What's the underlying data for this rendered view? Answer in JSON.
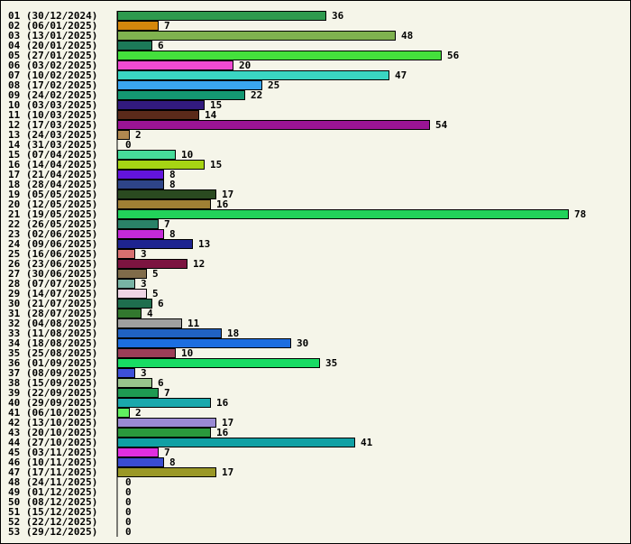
{
  "chart_data": {
    "type": "bar",
    "orientation": "horizontal",
    "title": "",
    "xlabel": "",
    "ylabel": "",
    "xlim": [
      0,
      78
    ],
    "grid": false,
    "categories": [
      "01 (30/12/2024)",
      "02 (06/01/2025)",
      "03 (13/01/2025)",
      "04 (20/01/2025)",
      "05 (27/01/2025)",
      "06 (03/02/2025)",
      "07 (10/02/2025)",
      "08 (17/02/2025)",
      "09 (24/02/2025)",
      "10 (03/03/2025)",
      "11 (10/03/2025)",
      "12 (17/03/2025)",
      "13 (24/03/2025)",
      "14 (31/03/2025)",
      "15 (07/04/2025)",
      "16 (14/04/2025)",
      "17 (21/04/2025)",
      "18 (28/04/2025)",
      "19 (05/05/2025)",
      "20 (12/05/2025)",
      "21 (19/05/2025)",
      "22 (26/05/2025)",
      "23 (02/06/2025)",
      "24 (09/06/2025)",
      "25 (16/06/2025)",
      "26 (23/06/2025)",
      "27 (30/06/2025)",
      "28 (07/07/2025)",
      "29 (14/07/2025)",
      "30 (21/07/2025)",
      "31 (28/07/2025)",
      "32 (04/08/2025)",
      "33 (11/08/2025)",
      "34 (18/08/2025)",
      "35 (25/08/2025)",
      "36 (01/09/2025)",
      "37 (08/09/2025)",
      "38 (15/09/2025)",
      "39 (22/09/2025)",
      "40 (29/09/2025)",
      "41 (06/10/2025)",
      "42 (13/10/2025)",
      "43 (20/10/2025)",
      "44 (27/10/2025)",
      "45 (03/11/2025)",
      "46 (10/11/2025)",
      "47 (17/11/2025)",
      "48 (24/11/2025)",
      "49 (01/12/2025)",
      "50 (08/12/2025)",
      "51 (15/12/2025)",
      "52 (22/12/2025)",
      "53 (29/12/2025)"
    ],
    "values": [
      36,
      7,
      48,
      6,
      56,
      20,
      47,
      25,
      22,
      15,
      14,
      54,
      2,
      0,
      10,
      15,
      8,
      8,
      17,
      16,
      78,
      7,
      8,
      13,
      3,
      12,
      5,
      3,
      5,
      6,
      4,
      11,
      18,
      30,
      10,
      35,
      3,
      6,
      7,
      16,
      2,
      17,
      16,
      41,
      7,
      8,
      17,
      0,
      0,
      0,
      0,
      0,
      0
    ],
    "colors": [
      "#2e9a4e",
      "#d4870c",
      "#7fb24f",
      "#1c7a58",
      "#44e03c",
      "#f04ad2",
      "#3ad6c2",
      "#3aa6f0",
      "#149872",
      "#321a7e",
      "#5a2a1a",
      "#9a1494",
      "#b08850",
      "#ffffff",
      "#46dc9a",
      "#a6d414",
      "#6214dc",
      "#2e4488",
      "#2a4a20",
      "#a08034",
      "#22d25a",
      "#2a8268",
      "#c42ad8",
      "#1e2490",
      "#d87070",
      "#7c1440",
      "#806c4a",
      "#78b4a4",
      "#eed4e4",
      "#1e6e4e",
      "#32782e",
      "#a0a0a0",
      "#2062c2",
      "#1c6ee0",
      "#9c3e58",
      "#18dc64",
      "#3e50d8",
      "#98c48c",
      "#1e9a52",
      "#1aa8ac",
      "#60f060",
      "#9a8ad4",
      "#2a9a3c",
      "#10a0a4",
      "#e02ee0",
      "#3a4cd0",
      "#9a9826",
      "#ffffff",
      "#ffffff",
      "#ffffff",
      "#ffffff",
      "#ffffff",
      "#ffffff"
    ]
  }
}
